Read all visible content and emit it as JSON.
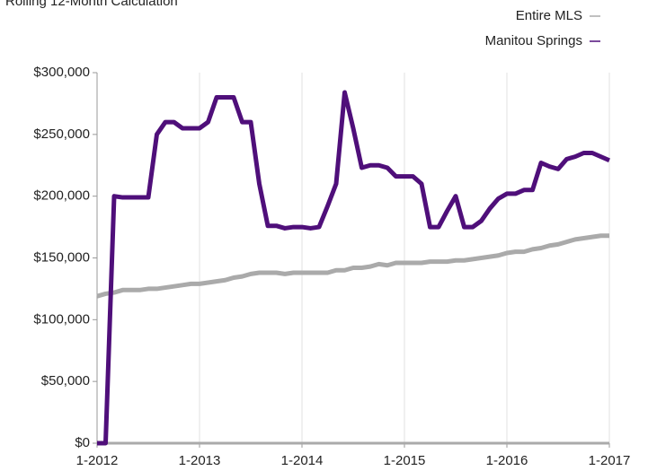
{
  "chart_data": {
    "type": "line",
    "subtitle": "Rolling 12-Month Calculation",
    "categories": [
      "1-2012",
      "2-2012",
      "3-2012",
      "4-2012",
      "5-2012",
      "6-2012",
      "7-2012",
      "8-2012",
      "9-2012",
      "10-2012",
      "11-2012",
      "12-2012",
      "1-2013",
      "2-2013",
      "3-2013",
      "4-2013",
      "5-2013",
      "6-2013",
      "7-2013",
      "8-2013",
      "9-2013",
      "10-2013",
      "11-2013",
      "12-2013",
      "1-2014",
      "2-2014",
      "3-2014",
      "4-2014",
      "5-2014",
      "6-2014",
      "7-2014",
      "8-2014",
      "9-2014",
      "10-2014",
      "11-2014",
      "12-2014",
      "1-2015",
      "2-2015",
      "3-2015",
      "4-2015",
      "5-2015",
      "6-2015",
      "7-2015",
      "8-2015",
      "9-2015",
      "10-2015",
      "11-2015",
      "12-2015",
      "1-2016",
      "2-2016",
      "3-2016",
      "4-2016",
      "5-2016",
      "6-2016",
      "7-2016",
      "8-2016",
      "9-2016",
      "10-2016",
      "11-2016",
      "12-2016",
      "1-2017"
    ],
    "xticks": [
      "1-2012",
      "1-2013",
      "1-2014",
      "1-2015",
      "1-2016",
      "1-2017"
    ],
    "series": [
      {
        "name": "Entire MLS",
        "color": "#aaaaaa",
        "values": [
          119000,
          121000,
          122000,
          124000,
          124000,
          124000,
          125000,
          125000,
          126000,
          127000,
          128000,
          129000,
          129000,
          130000,
          131000,
          132000,
          134000,
          135000,
          137000,
          138000,
          138000,
          138000,
          137000,
          138000,
          138000,
          138000,
          138000,
          138000,
          140000,
          140000,
          142000,
          142000,
          143000,
          145000,
          144000,
          146000,
          146000,
          146000,
          146000,
          147000,
          147000,
          147000,
          148000,
          148000,
          149000,
          150000,
          151000,
          152000,
          154000,
          155000,
          155000,
          157000,
          158000,
          160000,
          161000,
          163000,
          165000,
          166000,
          167000,
          168000,
          168000
        ]
      },
      {
        "name": "Manitou Springs",
        "color": "#4f0f7a",
        "values": [
          0,
          0,
          200000,
          199000,
          199000,
          199000,
          199000,
          250000,
          260000,
          260000,
          255000,
          255000,
          255000,
          260000,
          280000,
          280000,
          280000,
          260000,
          260000,
          210000,
          176000,
          176000,
          174000,
          175000,
          175000,
          174000,
          175000,
          192000,
          210000,
          284000,
          255000,
          223000,
          225000,
          225000,
          223000,
          216000,
          216000,
          216000,
          210000,
          175000,
          175000,
          188000,
          200000,
          175000,
          175000,
          180000,
          190000,
          198000,
          202000,
          202000,
          205000,
          205000,
          227000,
          224000,
          222000,
          230000,
          232000,
          235000,
          235000,
          232000,
          229000
        ]
      }
    ],
    "ylim": [
      0,
      300000
    ],
    "yticks": [
      {
        "value": 0,
        "label": "$0"
      },
      {
        "value": 50000,
        "label": "$50,000"
      },
      {
        "value": 100000,
        "label": "$100,000"
      },
      {
        "value": 150000,
        "label": "$150,000"
      },
      {
        "value": 200000,
        "label": "$200,000"
      },
      {
        "value": 250000,
        "label": "$250,000"
      },
      {
        "value": 300000,
        "label": "$300,000"
      }
    ],
    "grid": true,
    "legend": "top-right"
  }
}
